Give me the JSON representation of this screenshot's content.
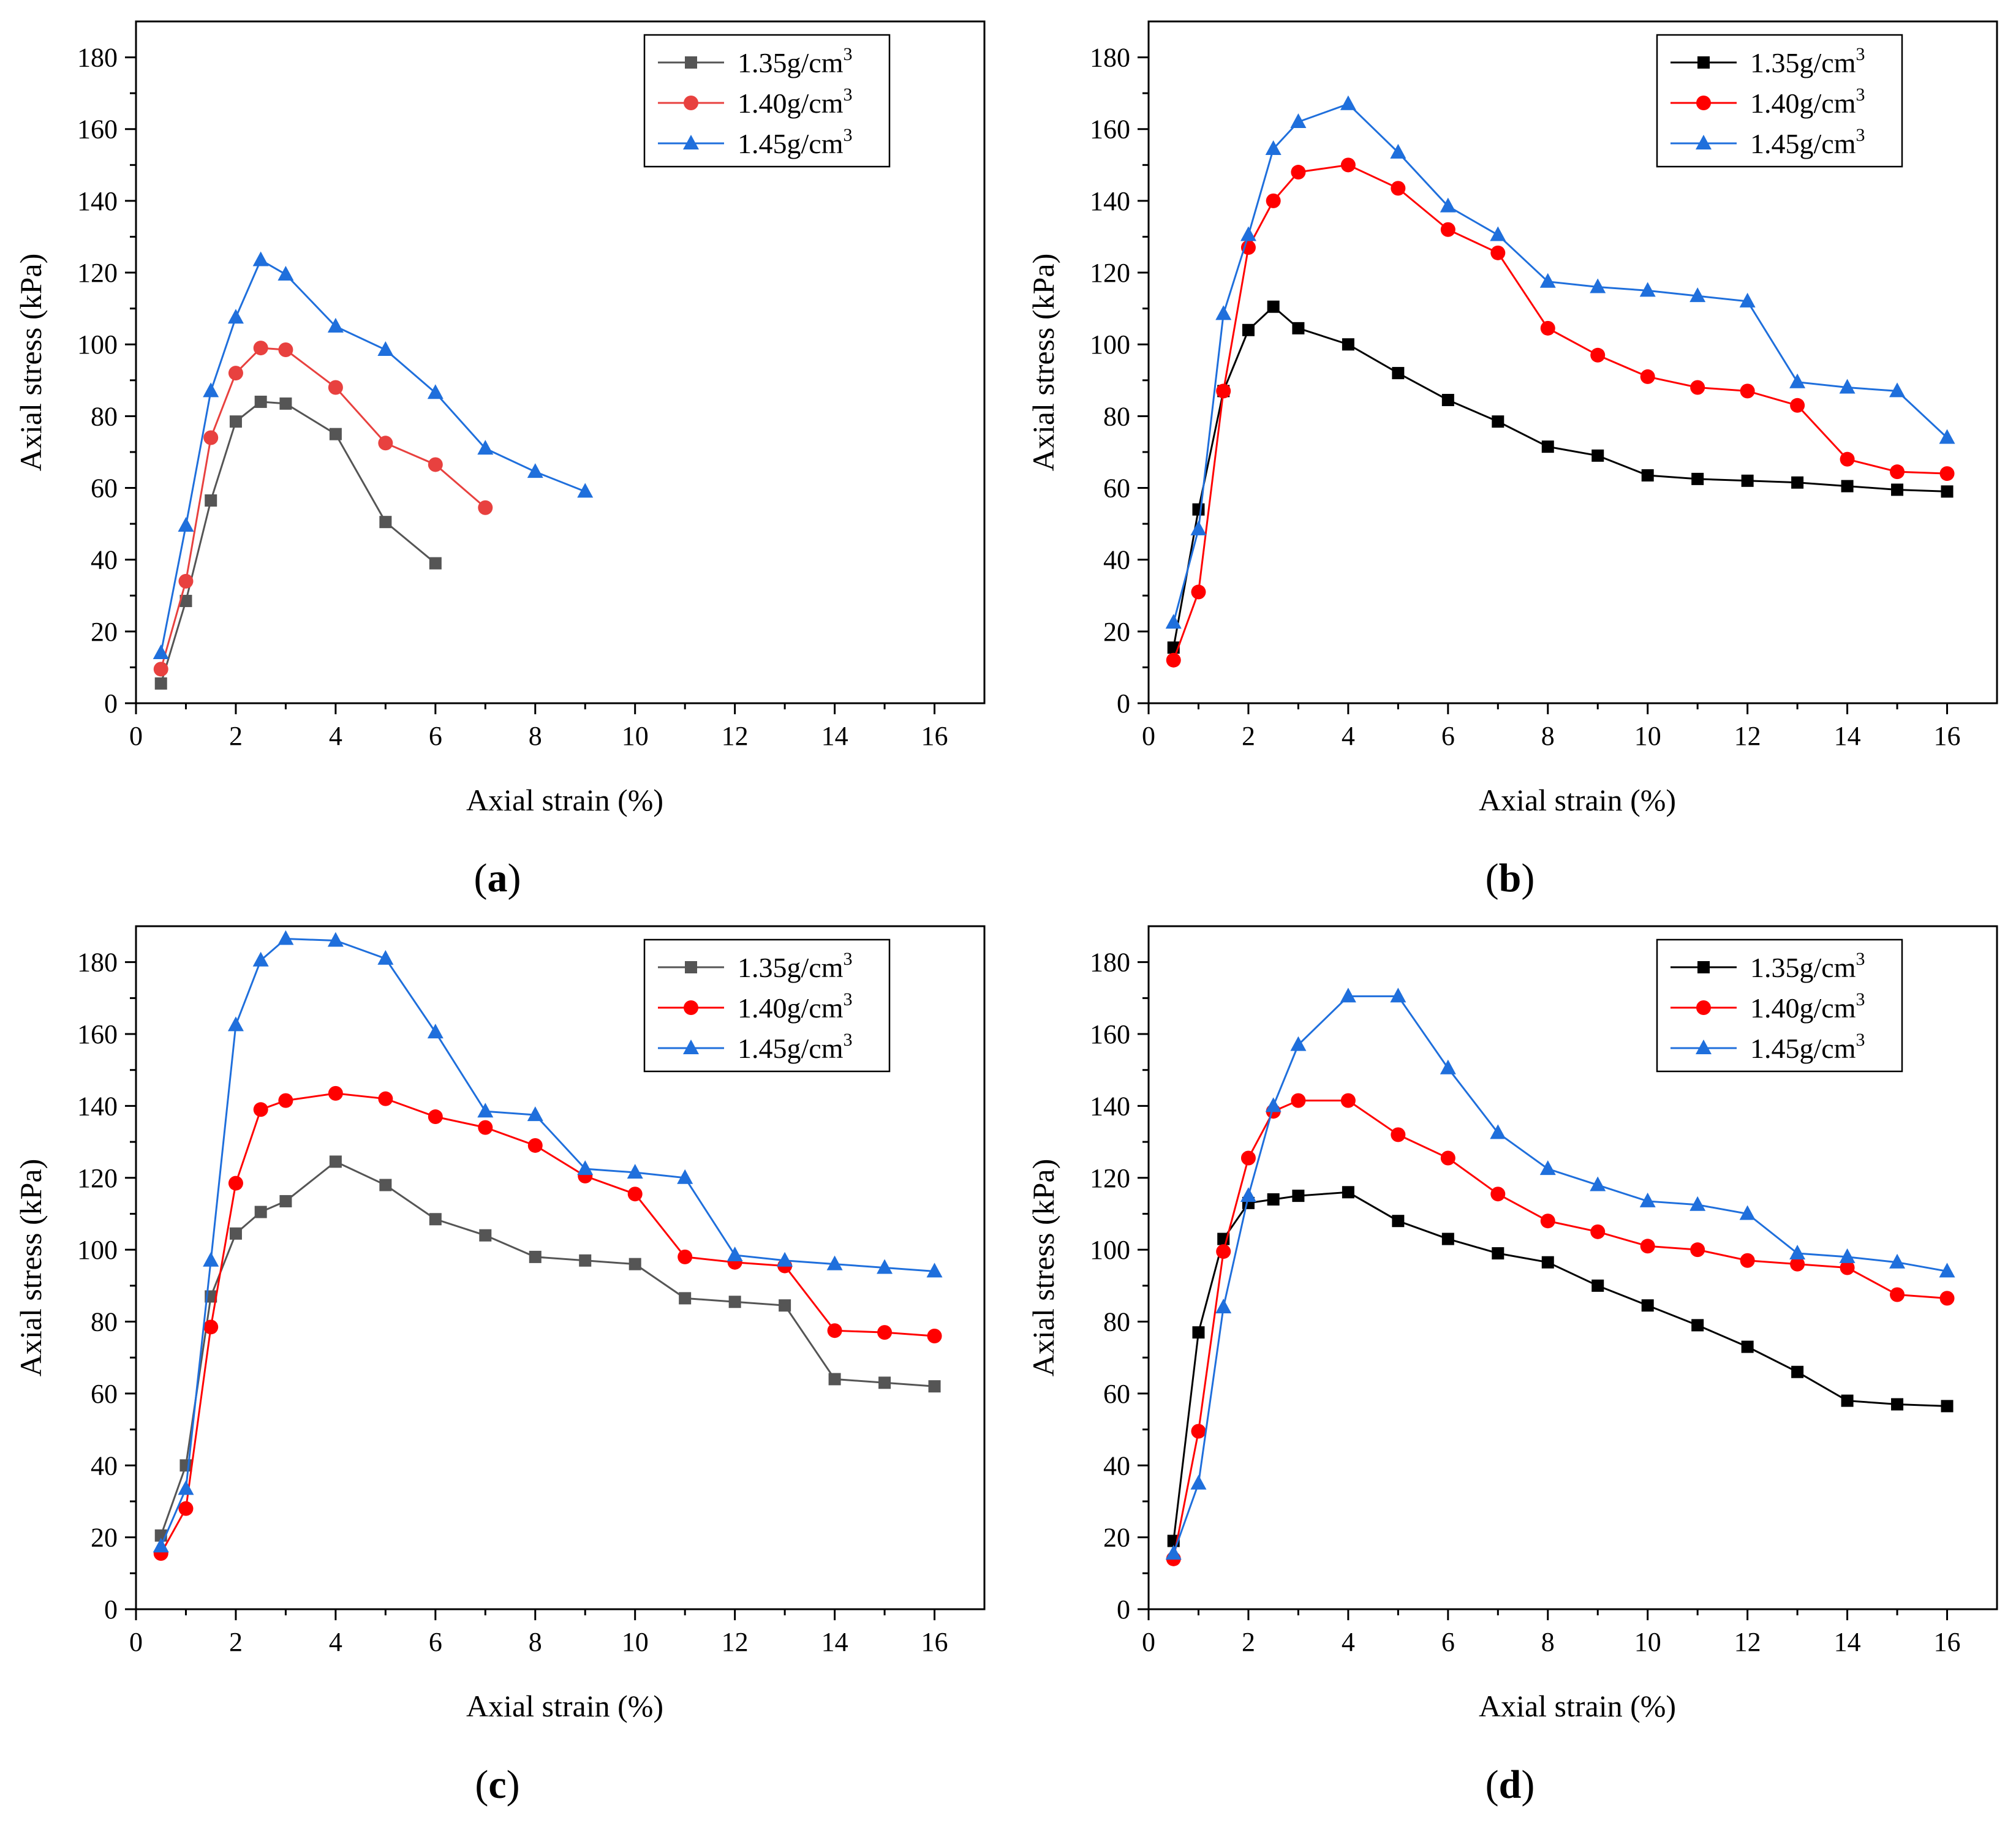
{
  "figure": {
    "panels": [
      "a",
      "b",
      "c",
      "d"
    ]
  },
  "chart_data": [
    {
      "id": "a",
      "label": "a",
      "type": "line",
      "xlabel": "Axial strain (%)",
      "ylabel": "Axial stress (kPa)",
      "xlim": [
        0,
        17
      ],
      "ylim": [
        0,
        190
      ],
      "xticks": [
        0,
        2,
        4,
        6,
        8,
        10,
        12,
        14,
        16
      ],
      "yticks": [
        0,
        20,
        40,
        60,
        80,
        100,
        120,
        140,
        160,
        180
      ],
      "legend_position": "top-right",
      "series": [
        {
          "name": "1.35g/cm",
          "sup": "3",
          "color": "#555555",
          "marker": "square",
          "x": [
            0.5,
            1,
            1.5,
            2,
            2.5,
            3,
            4,
            5,
            6
          ],
          "y": [
            5.5,
            28.5,
            56.5,
            78.5,
            84,
            83.5,
            75,
            50.5,
            39
          ]
        },
        {
          "name": "1.40g/cm",
          "sup": "3",
          "color": "#e8413f",
          "marker": "circle",
          "x": [
            0.5,
            1,
            1.5,
            2,
            2.5,
            3,
            4,
            5,
            6,
            7
          ],
          "y": [
            9.5,
            34,
            74,
            92,
            99,
            98.5,
            88,
            72.5,
            66.5,
            54.5
          ]
        },
        {
          "name": "1.45g/cm",
          "sup": "3",
          "color": "#1f6fdc",
          "marker": "triangle",
          "x": [
            0.5,
            1,
            1.5,
            2,
            2.5,
            3,
            4,
            5,
            6,
            7,
            8,
            9
          ],
          "y": [
            14,
            49.5,
            87,
            107.5,
            123.5,
            119.5,
            105,
            98.5,
            86.5,
            71,
            64.5,
            59
          ]
        }
      ]
    },
    {
      "id": "b",
      "label": "b",
      "type": "line",
      "xlabel": "Axial strain (%)",
      "ylabel": "Axial stress (kPa)",
      "xlim": [
        0,
        17
      ],
      "ylim": [
        0,
        190
      ],
      "xticks": [
        0,
        2,
        4,
        6,
        8,
        10,
        12,
        14,
        16
      ],
      "yticks": [
        0,
        20,
        40,
        60,
        80,
        100,
        120,
        140,
        160,
        180
      ],
      "legend_position": "top-right",
      "series": [
        {
          "name": "1.35g/cm",
          "sup": "3",
          "color": "#000000",
          "marker": "square",
          "x": [
            0.5,
            1,
            1.5,
            2,
            2.5,
            3,
            4,
            5,
            6,
            7,
            8,
            9,
            10,
            11,
            12,
            13,
            14,
            15,
            16
          ],
          "y": [
            15.5,
            54,
            87,
            104,
            110.5,
            104.5,
            100,
            92,
            84.5,
            78.5,
            71.5,
            69,
            63.5,
            62.5,
            62,
            61.5,
            60.5,
            59.5,
            59
          ]
        },
        {
          "name": "1.40g/cm",
          "sup": "3",
          "color": "#ff0000",
          "marker": "circle",
          "x": [
            0.5,
            1,
            1.5,
            2,
            2.5,
            3,
            4,
            5,
            6,
            7,
            8,
            9,
            10,
            11,
            12,
            13,
            14,
            15,
            16
          ],
          "y": [
            12,
            31,
            87,
            127,
            140,
            148,
            150,
            143.5,
            132,
            125.5,
            104.5,
            97,
            91,
            88,
            87,
            83,
            68,
            64.5,
            64
          ]
        },
        {
          "name": "1.45g/cm",
          "sup": "3",
          "color": "#1f6fdc",
          "marker": "triangle",
          "x": [
            0.5,
            1,
            1.5,
            2,
            2.5,
            3,
            4,
            5,
            6,
            7,
            8,
            9,
            10,
            11,
            12,
            13,
            14,
            15,
            16
          ],
          "y": [
            22.5,
            48.5,
            108.5,
            130.5,
            154.5,
            162,
            167,
            153.5,
            138.5,
            130.5,
            117.5,
            116,
            115,
            113.5,
            112,
            89.5,
            88,
            87,
            74
          ]
        }
      ]
    },
    {
      "id": "c",
      "label": "c",
      "type": "line",
      "xlabel": "Axial strain (%)",
      "ylabel": "Axial stress (kPa)",
      "xlim": [
        0,
        17
      ],
      "ylim": [
        0,
        190
      ],
      "xticks": [
        0,
        2,
        4,
        6,
        8,
        10,
        12,
        14,
        16
      ],
      "yticks": [
        0,
        20,
        40,
        60,
        80,
        100,
        120,
        140,
        160,
        180
      ],
      "legend_position": "top-right",
      "series": [
        {
          "name": "1.35g/cm",
          "sup": "3",
          "color": "#555555",
          "marker": "square",
          "x": [
            0.5,
            1,
            1.5,
            2,
            2.5,
            3,
            4,
            5,
            6,
            7,
            8,
            9,
            10,
            11,
            12,
            13,
            14,
            15,
            16
          ],
          "y": [
            20.5,
            40,
            87,
            104.5,
            110.5,
            113.5,
            124.5,
            118,
            108.5,
            104,
            98,
            97,
            96,
            86.5,
            85.5,
            84.5,
            64,
            63,
            62
          ]
        },
        {
          "name": "1.40g/cm",
          "sup": "3",
          "color": "#ff0000",
          "marker": "circle",
          "x": [
            0.5,
            1,
            1.5,
            2,
            2.5,
            3,
            4,
            5,
            6,
            7,
            8,
            9,
            10,
            11,
            12,
            13,
            14,
            15,
            16
          ],
          "y": [
            15.5,
            28,
            78.5,
            118.5,
            139,
            141.5,
            143.5,
            142,
            137,
            134,
            129,
            120.5,
            115.5,
            98,
            96.5,
            95.5,
            77.5,
            77,
            76
          ]
        },
        {
          "name": "1.45g/cm",
          "sup": "3",
          "color": "#1f6fdc",
          "marker": "triangle",
          "x": [
            0.5,
            1,
            1.5,
            2,
            2.5,
            3,
            4,
            5,
            6,
            7,
            8,
            9,
            10,
            11,
            12,
            13,
            14,
            15,
            16
          ],
          "y": [
            17.5,
            33.5,
            97,
            162.5,
            180.5,
            186.5,
            186,
            181,
            160.5,
            138.5,
            137.5,
            122.5,
            121.5,
            120,
            98.5,
            97,
            96,
            95,
            94
          ]
        }
      ]
    },
    {
      "id": "d",
      "label": "d",
      "type": "line",
      "xlabel": "Axial strain (%)",
      "ylabel": "Axial stress (kPa)",
      "xlim": [
        0,
        17
      ],
      "ylim": [
        0,
        190
      ],
      "xticks": [
        0,
        2,
        4,
        6,
        8,
        10,
        12,
        14,
        16
      ],
      "yticks": [
        0,
        20,
        40,
        60,
        80,
        100,
        120,
        140,
        160,
        180
      ],
      "legend_position": "top-right",
      "series": [
        {
          "name": "1.35g/cm",
          "sup": "3",
          "color": "#000000",
          "marker": "square",
          "x": [
            0.5,
            1,
            1.5,
            2,
            2.5,
            3,
            4,
            5,
            6,
            7,
            8,
            9,
            10,
            11,
            12,
            13,
            14,
            15,
            16
          ],
          "y": [
            19,
            77,
            103,
            113,
            114,
            115,
            116,
            108,
            103,
            99,
            96.5,
            90,
            84.5,
            79,
            73,
            66,
            58,
            57,
            56.5
          ]
        },
        {
          "name": "1.40g/cm",
          "sup": "3",
          "color": "#ff0000",
          "marker": "circle",
          "x": [
            0.5,
            1,
            1.5,
            2,
            2.5,
            3,
            4,
            5,
            6,
            7,
            8,
            9,
            10,
            11,
            12,
            13,
            14,
            15,
            16
          ],
          "y": [
            14,
            49.5,
            99.5,
            125.5,
            138.5,
            141.5,
            141.5,
            132,
            125.5,
            115.5,
            108,
            105,
            101,
            100,
            97,
            96,
            95,
            87.5,
            86.5
          ]
        },
        {
          "name": "1.45g/cm",
          "sup": "3",
          "color": "#1f6fdc",
          "marker": "triangle",
          "x": [
            0.5,
            1,
            1.5,
            2,
            2.5,
            3,
            4,
            5,
            6,
            7,
            8,
            9,
            10,
            11,
            12,
            13,
            14,
            15,
            16
          ],
          "y": [
            15.5,
            35,
            84,
            115,
            140,
            157,
            170.5,
            170.5,
            150.5,
            132.5,
            122.5,
            118,
            113.5,
            112.5,
            110,
            99,
            98,
            96.5,
            94
          ]
        }
      ]
    }
  ]
}
